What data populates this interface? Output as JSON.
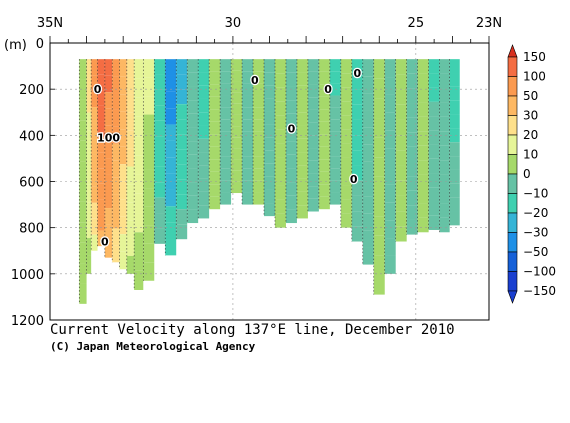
{
  "chart_data": {
    "type": "heatmap",
    "title": "Current Velocity along 137°E line, December 2010",
    "credit": "(C) Japan Meteorological Agency",
    "y_unit_label": "(m)",
    "x_axis": {
      "position": "top",
      "tick_labels": [
        "35N",
        "30",
        "25",
        "23N"
      ],
      "tick_values": [
        35,
        30,
        25,
        23
      ],
      "range": [
        35,
        23
      ]
    },
    "y_axis": {
      "tick_labels": [
        "0",
        "200",
        "400",
        "600",
        "800",
        "1000",
        "1200"
      ],
      "tick_values": [
        0,
        200,
        400,
        600,
        800,
        1000,
        1200
      ],
      "range": [
        0,
        1200
      ],
      "inverted": true
    },
    "grid": true,
    "colorbar": {
      "position": "right",
      "labels": [
        "150",
        "100",
        "50",
        "30",
        "20",
        "10",
        "0",
        "−10",
        "−20",
        "−30",
        "−50",
        "−100",
        "−150"
      ],
      "colors": [
        "#d7301f",
        "#f46d43",
        "#fb9a50",
        "#fdb863",
        "#fee08b",
        "#e6f598",
        "#a6d96a",
        "#66c2a5",
        "#3fd0b0",
        "#35b4d6",
        "#1e90e6",
        "#1560d8",
        "#1a3fd0"
      ]
    },
    "contour_labels": [
      {
        "text": "0",
        "lat": 33.7,
        "depth": 200
      },
      {
        "text": "100",
        "lat": 33.4,
        "depth": 410
      },
      {
        "text": "0",
        "lat": 33.5,
        "depth": 860
      },
      {
        "text": "0",
        "lat": 29.4,
        "depth": 160
      },
      {
        "text": "0",
        "lat": 27.4,
        "depth": 200
      },
      {
        "text": "0",
        "lat": 28.4,
        "depth": 370
      },
      {
        "text": "0",
        "lat": 26.6,
        "depth": 130
      },
      {
        "text": "0",
        "lat": 26.7,
        "depth": 590
      }
    ],
    "profiles": [
      {
        "lat": 34.05,
        "bottom": 1130,
        "speed": 2
      },
      {
        "lat": 33.95,
        "bottom": 1000,
        "speed": 25
      },
      {
        "lat": 33.8,
        "bottom": 900,
        "speed": 60
      },
      {
        "lat": 33.6,
        "bottom": 880,
        "speed": 140
      },
      {
        "lat": 33.4,
        "bottom": 930,
        "speed": 110
      },
      {
        "lat": 33.2,
        "bottom": 950,
        "speed": 70
      },
      {
        "lat": 33.0,
        "bottom": 980,
        "speed": 45
      },
      {
        "lat": 32.8,
        "bottom": 1000,
        "speed": 30
      },
      {
        "lat": 32.6,
        "bottom": 1070,
        "speed": 20
      },
      {
        "lat": 32.3,
        "bottom": 1030,
        "speed": 12
      },
      {
        "lat": 32.0,
        "bottom": 870,
        "speed": -20
      },
      {
        "lat": 31.7,
        "bottom": 920,
        "speed": -40
      },
      {
        "lat": 31.4,
        "bottom": 850,
        "speed": -25
      },
      {
        "lat": 31.1,
        "bottom": 780,
        "speed": -10
      },
      {
        "lat": 30.8,
        "bottom": 760,
        "speed": -15
      },
      {
        "lat": 30.5,
        "bottom": 720,
        "speed": 5
      },
      {
        "lat": 30.2,
        "bottom": 700,
        "speed": -8
      },
      {
        "lat": 29.9,
        "bottom": 650,
        "speed": 8
      },
      {
        "lat": 29.6,
        "bottom": 700,
        "speed": -5
      },
      {
        "lat": 29.3,
        "bottom": 700,
        "speed": 6
      },
      {
        "lat": 29.0,
        "bottom": 750,
        "speed": -6
      },
      {
        "lat": 28.7,
        "bottom": 800,
        "speed": 4
      },
      {
        "lat": 28.4,
        "bottom": 780,
        "speed": -4
      },
      {
        "lat": 28.1,
        "bottom": 760,
        "speed": 7
      },
      {
        "lat": 27.8,
        "bottom": 730,
        "speed": -9
      },
      {
        "lat": 27.5,
        "bottom": 720,
        "speed": 3
      },
      {
        "lat": 27.2,
        "bottom": 700,
        "speed": -12
      },
      {
        "lat": 26.9,
        "bottom": 800,
        "speed": 2
      },
      {
        "lat": 26.6,
        "bottom": 860,
        "speed": -18
      },
      {
        "lat": 26.3,
        "bottom": 960,
        "speed": -8
      },
      {
        "lat": 26.0,
        "bottom": 1090,
        "speed": 3
      },
      {
        "lat": 25.7,
        "bottom": 1000,
        "speed": -10
      },
      {
        "lat": 25.4,
        "bottom": 860,
        "speed": 4
      },
      {
        "lat": 25.1,
        "bottom": 830,
        "speed": -6
      },
      {
        "lat": 24.8,
        "bottom": 820,
        "speed": 2
      },
      {
        "lat": 24.5,
        "bottom": 810,
        "speed": -12
      },
      {
        "lat": 24.2,
        "bottom": 820,
        "speed": -5
      },
      {
        "lat": 23.95,
        "bottom": 790,
        "speed": -15
      }
    ]
  }
}
